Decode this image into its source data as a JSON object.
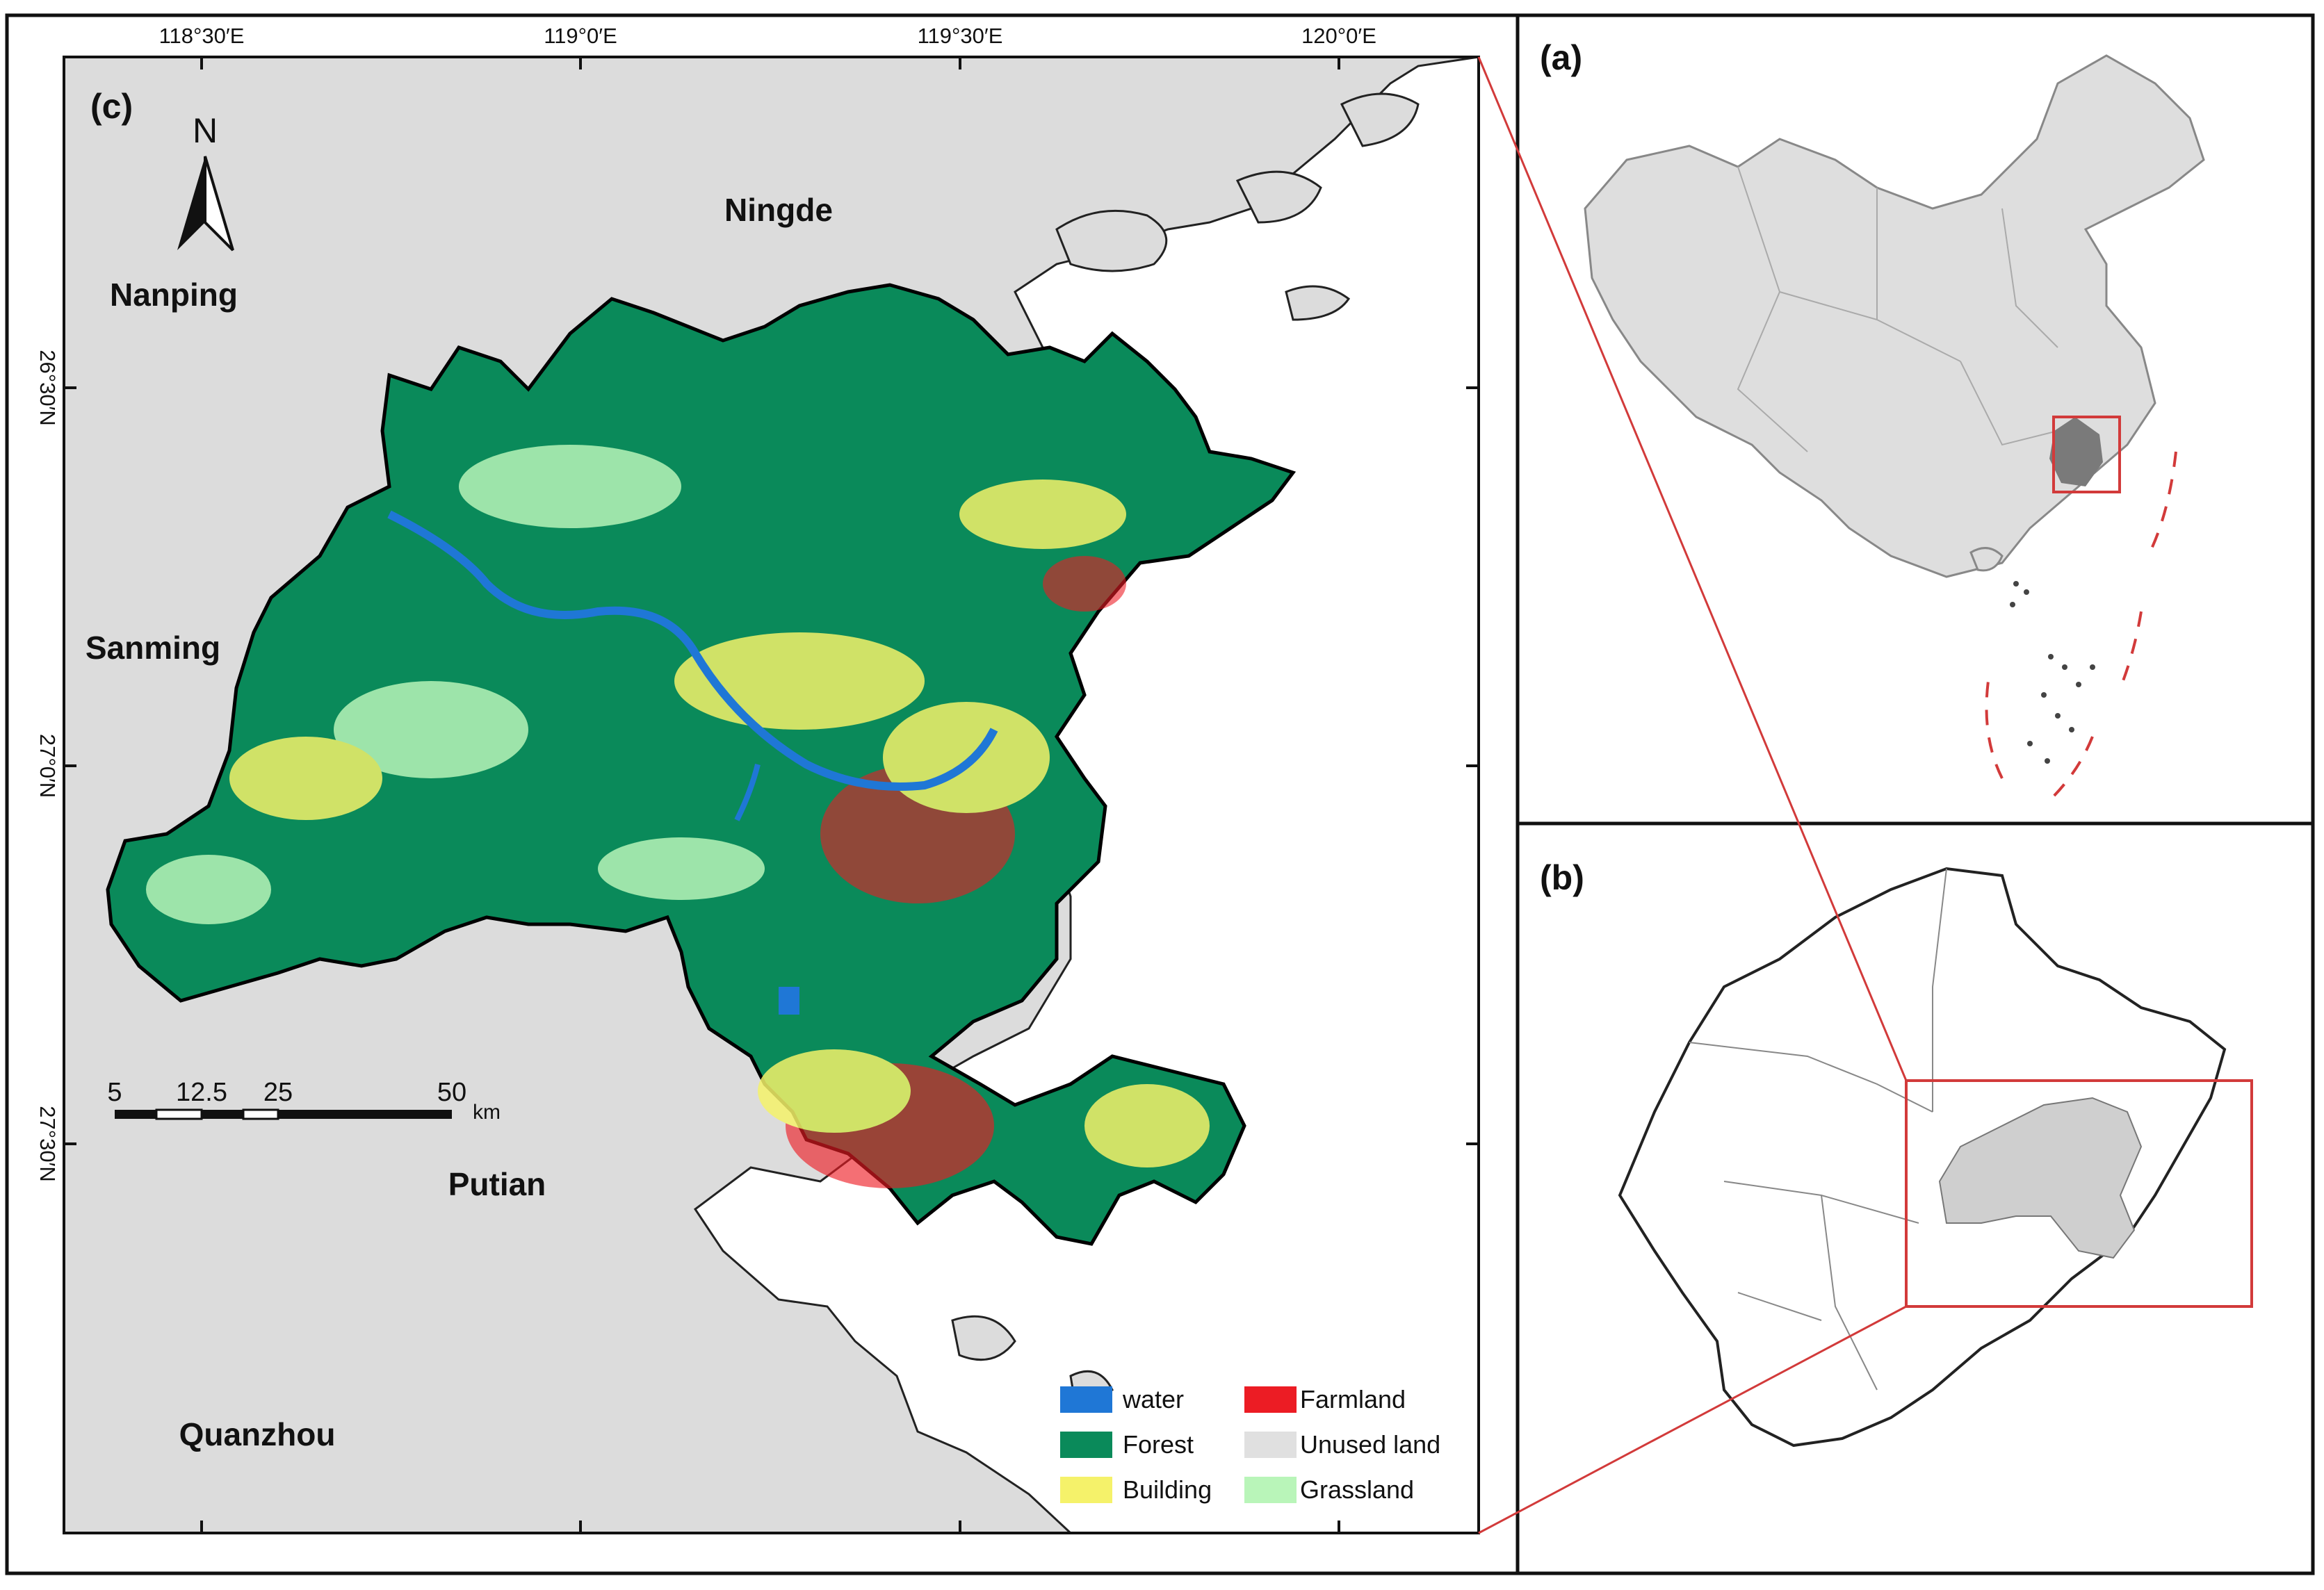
{
  "panels": {
    "a": {
      "label": "(a)"
    },
    "b": {
      "label": "(b)"
    },
    "c": {
      "label": "(c)"
    }
  },
  "north_arrow": {
    "label": "N"
  },
  "longitude_labels": [
    "118°30′E",
    "119°0′E",
    "119°30′E",
    "120°0′E"
  ],
  "latitude_labels": [
    "26°30′N",
    "27°0′N",
    "27°30′N"
  ],
  "places": {
    "ningde": "Ningde",
    "nanping": "Nanping",
    "sanming": "Sanming",
    "putian": "Putian",
    "quanzhou": "Quanzhou"
  },
  "scale_bar": {
    "ticks": [
      "5",
      "12.5",
      "25",
      "50"
    ],
    "unit": "km"
  },
  "legend": {
    "items": [
      {
        "label": "water",
        "color": "#1f77d6"
      },
      {
        "label": "Forest",
        "color": "#0a8a5a"
      },
      {
        "label": "Building",
        "color": "#f5f26a"
      },
      {
        "label": "Farmland",
        "color": "#ec1c24"
      },
      {
        "label": "Unused land",
        "color": "#e0e0e0"
      },
      {
        "label": "Grassland",
        "color": "#b9f5b9"
      }
    ]
  },
  "colors": {
    "neighbor_land": "#dcdcdc",
    "sea": "#ffffff",
    "study_area_b": "#cfcfcf",
    "fujian_a": "#7a7a7a",
    "china_a": "#dedede",
    "highlight": "#d23a3a"
  }
}
